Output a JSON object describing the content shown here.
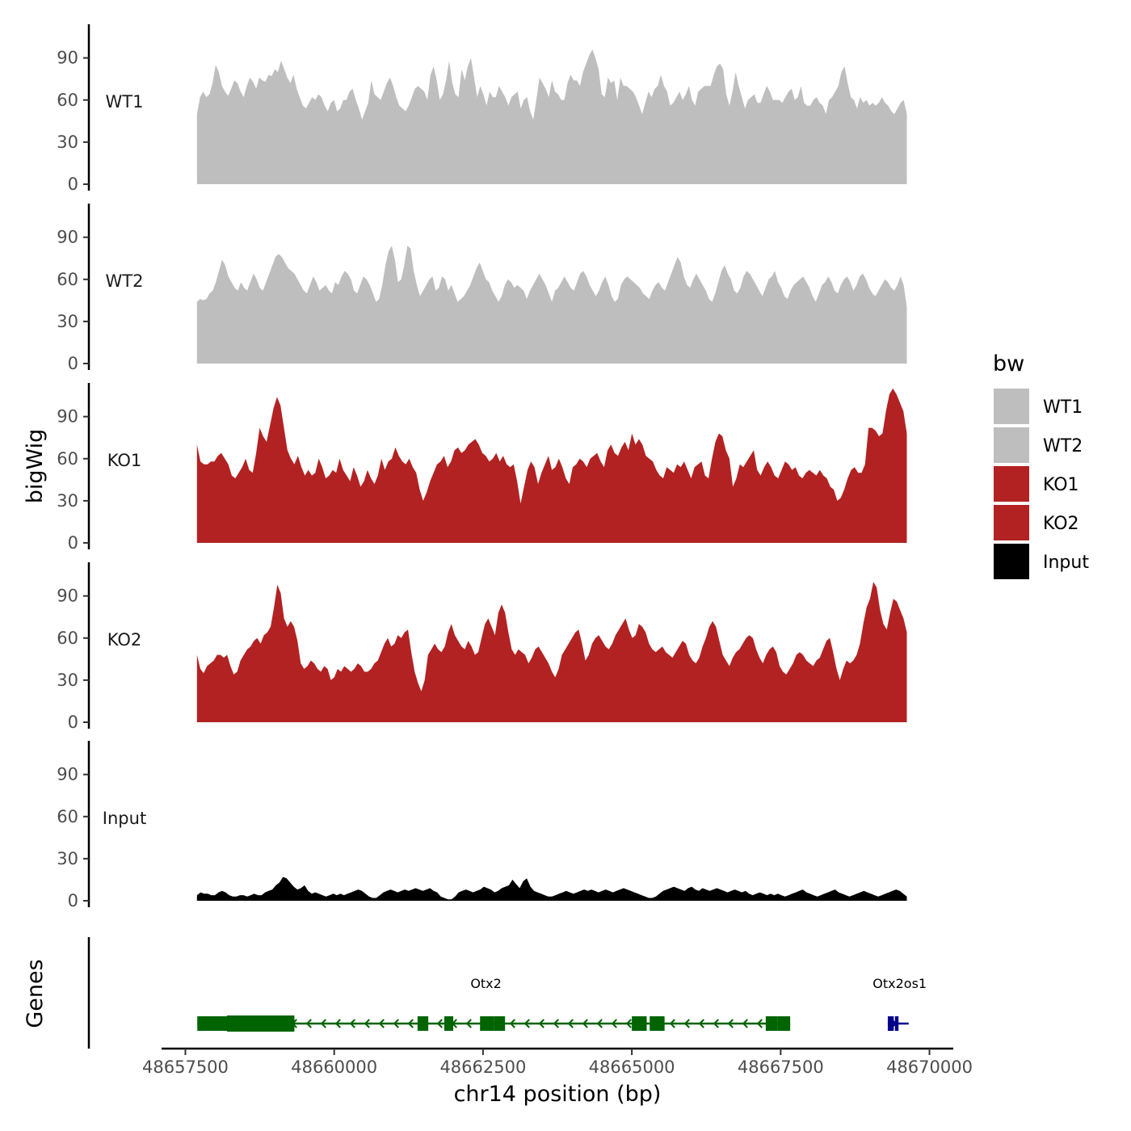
{
  "chart_data": {
    "type": "area",
    "xlabel": "chr14 position (bp)",
    "ylabel": "bigWig",
    "genes_label": "Genes",
    "xlim": [
      48657100,
      48670400
    ],
    "x_ticks": [
      "48657500",
      "48660000",
      "48662500",
      "48665000",
      "48667500",
      "48670000"
    ],
    "x_tick_values": [
      48657500,
      48660000,
      48662500,
      48665000,
      48667500,
      48670000
    ],
    "ylim": [
      0,
      114
    ],
    "y_ticks": [
      "0",
      "30",
      "60",
      "90"
    ],
    "y_tick_values": [
      0,
      30,
      60,
      90
    ],
    "x_start": 48657695,
    "x_end": 48669620,
    "legend": {
      "title": "bw",
      "placement": "right",
      "entries": [
        {
          "label": "WT1",
          "color": "#bebebe"
        },
        {
          "label": "WT2",
          "color": "#bebebe"
        },
        {
          "label": "KO1",
          "color": "#b22222"
        },
        {
          "label": "KO2",
          "color": "#b22222"
        },
        {
          "label": "Input",
          "color": "#000000"
        }
      ]
    },
    "series": [
      {
        "name": "WT1",
        "color": "#bebebe",
        "values": [
          50,
          62,
          66,
          62,
          64,
          72,
          85,
          80,
          70,
          66,
          63,
          68,
          74,
          72,
          66,
          62,
          70,
          76,
          73,
          68,
          76,
          74,
          73,
          78,
          77,
          82,
          80,
          88,
          82,
          76,
          72,
          78,
          68,
          62,
          56,
          54,
          58,
          62,
          60,
          64,
          62,
          56,
          52,
          58,
          60,
          52,
          54,
          60,
          60,
          66,
          68,
          60,
          54,
          46,
          52,
          58,
          74,
          64,
          62,
          60,
          66,
          72,
          76,
          70,
          62,
          56,
          54,
          52,
          56,
          62,
          68,
          70,
          68,
          66,
          60,
          78,
          84,
          74,
          60,
          64,
          74,
          88,
          72,
          64,
          62,
          82,
          74,
          84,
          90,
          76,
          62,
          70,
          64,
          56,
          66,
          62,
          62,
          70,
          66,
          62,
          56,
          62,
          64,
          66,
          54,
          60,
          62,
          52,
          46,
          60,
          76,
          72,
          68,
          62,
          74,
          66,
          64,
          60,
          60,
          72,
          78,
          74,
          74,
          70,
          80,
          86,
          92,
          96,
          90,
          82,
          64,
          62,
          76,
          72,
          74,
          60,
          76,
          70,
          70,
          68,
          66,
          62,
          56,
          50,
          58,
          66,
          62,
          68,
          70,
          78,
          70,
          66,
          56,
          58,
          62,
          66,
          60,
          64,
          70,
          60,
          56,
          66,
          68,
          70,
          70,
          70,
          78,
          84,
          86,
          82,
          64,
          56,
          66,
          80,
          70,
          62,
          54,
          60,
          62,
          64,
          58,
          58,
          64,
          70,
          66,
          60,
          60,
          60,
          58,
          62,
          66,
          68,
          60,
          62,
          70,
          58,
          56,
          56,
          60,
          62,
          58,
          56,
          50,
          60,
          62,
          66,
          70,
          80,
          84,
          72,
          62,
          60,
          54,
          62,
          58,
          60,
          56,
          58,
          56,
          58,
          62,
          58,
          56,
          52,
          50,
          54,
          58,
          60,
          50
        ]
      },
      {
        "name": "WT2",
        "color": "#bebebe",
        "values": [
          44,
          46,
          45,
          46,
          50,
          52,
          58,
          66,
          74,
          70,
          62,
          58,
          54,
          52,
          58,
          54,
          52,
          58,
          64,
          60,
          54,
          52,
          58,
          64,
          70,
          76,
          78,
          76,
          72,
          68,
          66,
          64,
          60,
          56,
          52,
          50,
          56,
          62,
          58,
          52,
          54,
          56,
          52,
          50,
          58,
          56,
          62,
          66,
          64,
          60,
          52,
          50,
          56,
          62,
          60,
          56,
          50,
          44,
          46,
          56,
          70,
          80,
          84,
          74,
          58,
          60,
          70,
          84,
          82,
          66,
          56,
          48,
          52,
          56,
          60,
          62,
          52,
          54,
          62,
          60,
          52,
          56,
          50,
          44,
          46,
          48,
          52,
          56,
          62,
          68,
          72,
          66,
          60,
          58,
          52,
          48,
          44,
          48,
          56,
          60,
          58,
          54,
          56,
          54,
          52,
          46,
          52,
          56,
          60,
          64,
          60,
          56,
          50,
          44,
          52,
          54,
          58,
          62,
          58,
          54,
          52,
          58,
          64,
          66,
          62,
          56,
          52,
          48,
          52,
          58,
          62,
          56,
          48,
          44,
          46,
          56,
          60,
          62,
          60,
          58,
          56,
          54,
          50,
          48,
          46,
          52,
          56,
          58,
          54,
          52,
          58,
          64,
          70,
          76,
          72,
          62,
          56,
          54,
          60,
          64,
          60,
          56,
          52,
          46,
          44,
          50,
          58,
          66,
          70,
          64,
          60,
          52,
          50,
          54,
          62,
          66,
          64,
          60,
          56,
          52,
          48,
          54,
          60,
          62,
          66,
          58,
          54,
          48,
          46,
          52,
          56,
          58,
          60,
          62,
          58,
          54,
          48,
          44,
          50,
          56,
          58,
          62,
          58,
          52,
          50,
          56,
          60,
          62,
          58,
          52,
          56,
          62,
          64,
          60,
          54,
          50,
          48,
          52,
          56,
          60,
          58,
          54,
          52,
          56,
          62,
          56,
          40
        ]
      },
      {
        "name": "KO1",
        "color": "#b22222",
        "values": [
          70,
          58,
          56,
          56,
          58,
          58,
          62,
          64,
          60,
          56,
          48,
          46,
          50,
          54,
          60,
          52,
          50,
          64,
          82,
          76,
          72,
          84,
          96,
          104,
          98,
          82,
          66,
          60,
          56,
          62,
          54,
          48,
          52,
          48,
          50,
          60,
          54,
          46,
          48,
          52,
          50,
          60,
          52,
          48,
          44,
          54,
          48,
          40,
          44,
          52,
          46,
          42,
          48,
          60,
          52,
          58,
          60,
          68,
          62,
          58,
          56,
          60,
          54,
          50,
          38,
          30,
          36,
          44,
          50,
          56,
          58,
          62,
          54,
          58,
          66,
          68,
          64,
          66,
          70,
          72,
          74,
          70,
          64,
          62,
          58,
          60,
          64,
          58,
          62,
          56,
          54,
          56,
          44,
          28,
          40,
          52,
          58,
          54,
          42,
          50,
          56,
          62,
          52,
          54,
          60,
          54,
          46,
          42,
          54,
          56,
          60,
          58,
          54,
          60,
          62,
          64,
          58,
          54,
          66,
          70,
          64,
          62,
          68,
          72,
          66,
          78,
          70,
          74,
          70,
          62,
          60,
          58,
          52,
          48,
          46,
          54,
          52,
          50,
          56,
          54,
          58,
          52,
          46,
          54,
          56,
          58,
          48,
          46,
          60,
          72,
          78,
          76,
          66,
          60,
          40,
          46,
          56,
          54,
          58,
          62,
          66,
          52,
          48,
          54,
          58,
          54,
          48,
          46,
          52,
          58,
          56,
          52,
          54,
          48,
          46,
          50,
          52,
          50,
          48,
          52,
          48,
          46,
          40,
          38,
          30,
          32,
          38,
          46,
          52,
          54,
          50,
          50,
          56,
          82,
          82,
          80,
          76,
          78,
          94,
          106,
          110,
          106,
          100,
          94,
          78
        ]
      },
      {
        "name": "KO2",
        "color": "#b22222",
        "values": [
          48,
          38,
          35,
          40,
          42,
          44,
          48,
          48,
          46,
          48,
          40,
          34,
          36,
          44,
          48,
          52,
          54,
          58,
          60,
          56,
          62,
          64,
          68,
          82,
          98,
          92,
          74,
          68,
          72,
          68,
          58,
          42,
          38,
          40,
          44,
          42,
          38,
          36,
          40,
          38,
          30,
          32,
          38,
          36,
          40,
          38,
          36,
          38,
          42,
          40,
          36,
          36,
          38,
          42,
          44,
          50,
          56,
          60,
          54,
          56,
          62,
          60,
          64,
          66,
          50,
          36,
          28,
          22,
          30,
          48,
          52,
          56,
          52,
          50,
          54,
          64,
          70,
          62,
          58,
          54,
          52,
          58,
          54,
          48,
          50,
          60,
          70,
          74,
          68,
          62,
          78,
          84,
          78,
          64,
          52,
          48,
          52,
          50,
          48,
          42,
          46,
          52,
          54,
          50,
          46,
          42,
          36,
          32,
          38,
          48,
          52,
          56,
          60,
          64,
          66,
          56,
          44,
          48,
          56,
          60,
          62,
          58,
          54,
          52,
          56,
          62,
          66,
          70,
          74,
          66,
          60,
          62,
          70,
          68,
          64,
          56,
          52,
          50,
          52,
          54,
          50,
          48,
          46,
          50,
          54,
          58,
          56,
          48,
          44,
          42,
          46,
          54,
          60,
          68,
          72,
          68,
          58,
          48,
          44,
          40,
          46,
          50,
          52,
          56,
          60,
          62,
          60,
          52,
          46,
          42,
          48,
          52,
          54,
          50,
          40,
          36,
          34,
          38,
          42,
          48,
          50,
          48,
          44,
          42,
          40,
          44,
          46,
          52,
          58,
          60,
          50,
          38,
          30,
          38,
          44,
          42,
          44,
          48,
          56,
          70,
          82,
          88,
          100,
          96,
          80,
          70,
          66,
          78,
          88,
          86,
          80,
          74,
          64
        ]
      },
      {
        "name": "Input",
        "color": "#000000",
        "values": [
          4,
          6,
          5,
          5,
          4,
          4,
          6,
          7,
          6,
          4,
          3,
          3,
          4,
          4,
          3,
          4,
          5,
          4,
          4,
          6,
          7,
          8,
          11,
          13,
          17,
          16,
          13,
          10,
          8,
          9,
          11,
          7,
          5,
          6,
          5,
          4,
          3,
          4,
          5,
          4,
          5,
          4,
          5,
          6,
          7,
          8,
          7,
          5,
          3,
          2,
          2,
          4,
          6,
          7,
          8,
          7,
          6,
          7,
          8,
          7,
          8,
          9,
          8,
          7,
          8,
          9,
          7,
          6,
          3,
          2,
          1,
          1,
          3,
          6,
          7,
          8,
          7,
          6,
          7,
          8,
          10,
          9,
          8,
          6,
          7,
          9,
          10,
          11,
          15,
          12,
          9,
          14,
          16,
          10,
          7,
          6,
          5,
          4,
          3,
          3,
          4,
          5,
          6,
          7,
          6,
          5,
          6,
          7,
          8,
          7,
          8,
          7,
          6,
          7,
          8,
          7,
          6,
          7,
          8,
          9,
          8,
          7,
          6,
          5,
          4,
          3,
          2,
          2,
          3,
          5,
          7,
          8,
          9,
          10,
          9,
          8,
          7,
          9,
          10,
          8,
          7,
          9,
          8,
          7,
          8,
          9,
          8,
          7,
          6,
          7,
          8,
          7,
          6,
          7,
          5,
          4,
          5,
          6,
          5,
          4,
          5,
          4,
          5,
          4,
          3,
          4,
          5,
          6,
          7,
          8,
          6,
          5,
          4,
          3,
          4,
          5,
          6,
          7,
          8,
          6,
          5,
          4,
          3,
          4,
          5,
          6,
          7,
          6,
          5,
          4,
          3,
          4,
          5,
          6,
          7,
          8,
          7,
          5,
          3
        ]
      }
    ],
    "genes": [
      {
        "name": "Otx2",
        "color": "#006400",
        "strand": "-",
        "start": 48657700,
        "end": 48667660,
        "label_pos": 48662550,
        "exons": [
          [
            48657700,
            48659330
          ],
          [
            48661400,
            48661580
          ],
          [
            48661850,
            48662000
          ],
          [
            48662450,
            48662680
          ],
          [
            48662680,
            48662870
          ],
          [
            48665000,
            48665250
          ],
          [
            48665300,
            48665550
          ],
          [
            48667250,
            48667450
          ],
          [
            48667450,
            48667660
          ]
        ],
        "thick": [
          [
            48658200,
            48659330
          ]
        ]
      },
      {
        "name": "Otx2os1",
        "color": "#00008b",
        "strand": "+",
        "start": 48669300,
        "end": 48669650,
        "label_pos": 48669500,
        "exons": [
          [
            48669300,
            48669400
          ],
          [
            48669420,
            48669480
          ]
        ],
        "thick": []
      }
    ]
  }
}
